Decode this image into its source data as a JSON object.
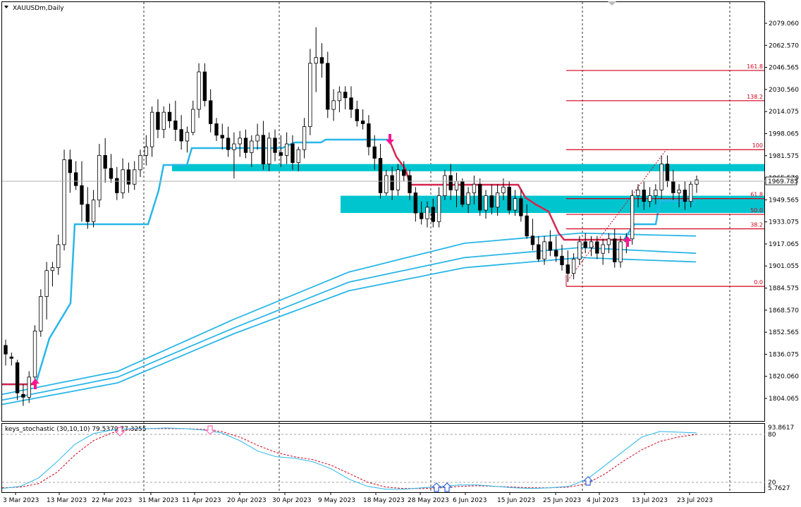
{
  "symbol_title": "XAUUSDm,Daily",
  "current_price": "1969.785",
  "price_ticks": [
    "2079.060",
    "2062.570",
    "2046.565",
    "2030.560",
    "2014.075",
    "1998.065",
    "1981.575",
    "1965.570",
    "1949.565",
    "1933.075",
    "1917.065",
    "1901.055",
    "1884.575",
    "1868.570",
    "1852.565",
    "1836.075",
    "1820.060",
    "1804.065"
  ],
  "date_ticks": [
    "3 Mar 2023",
    "13 Mar 2023",
    "22 Mar 2023",
    "31 Mar 2023",
    "11 Apr 2023",
    "20 Apr 2023",
    "30 Apr 2023",
    "9 May 2023",
    "18 May 2023",
    "28 May 2023",
    "6 Jun 2023",
    "15 Jun 2023",
    "25 Jun 2023",
    "4 Jul 2023",
    "13 Jul 2023",
    "23 Jul 2023"
  ],
  "fib_levels": [
    "161.8",
    "138.2",
    "100",
    "61.8",
    "50.0",
    "38.2",
    "0.0"
  ],
  "stochastic": {
    "label": "keys_stochastic (30,10,10) 79.5379 77.3255",
    "max_label": "93.8617",
    "level_80": "80",
    "level_20": "20",
    "min_label": "5.7627"
  },
  "colors": {
    "candle_up": "#ffffff",
    "candle_down": "#000000",
    "ma_band": "#29b6e8",
    "trail_line_bull": "#29b6e8",
    "trail_line_bear": "#d6254d",
    "zone": "#00c5cf",
    "fib": "#d0021b",
    "arrow": "#ff1493",
    "stoch_main": "#29b6e8",
    "stoch_signal": "#d0021b"
  },
  "chart_data": {
    "type": "candlestick",
    "title": "XAUUSDm,Daily",
    "y_range": [
      1802.0,
      2092.0
    ],
    "x_range": [
      "3 Mar 2023",
      "26 Jul 2023"
    ],
    "candles_ohlc": [
      [
        1854,
        1858,
        1840,
        1848
      ],
      [
        1846,
        1849,
        1840,
        1845
      ],
      [
        1842,
        1844,
        1816,
        1821
      ],
      [
        1820,
        1827,
        1812,
        1818
      ],
      [
        1818,
        1836,
        1814,
        1832
      ],
      [
        1832,
        1868,
        1828,
        1864
      ],
      [
        1864,
        1893,
        1860,
        1888
      ],
      [
        1888,
        1912,
        1872,
        1906
      ],
      [
        1906,
        1912,
        1895,
        1908
      ],
      [
        1908,
        1931,
        1903,
        1924
      ],
      [
        1924,
        1990,
        1920,
        1983
      ],
      [
        1983,
        1990,
        1960,
        1974
      ],
      [
        1974,
        1982,
        1962,
        1965
      ],
      [
        1965,
        1982,
        1940,
        1952
      ],
      [
        1952,
        1964,
        1935,
        1940
      ],
      [
        1940,
        1962,
        1936,
        1955
      ],
      [
        1955,
        1994,
        1950,
        1986
      ],
      [
        1986,
        1998,
        1967,
        1977
      ],
      [
        1977,
        1987,
        1967,
        1970
      ],
      [
        1970,
        1978,
        1955,
        1960
      ],
      [
        1960,
        1984,
        1956,
        1976
      ],
      [
        1976,
        1981,
        1960,
        1966
      ],
      [
        1966,
        1982,
        1962,
        1976
      ],
      [
        1976,
        1990,
        1971,
        1986
      ],
      [
        1986,
        2000,
        1979,
        1992
      ],
      [
        1992,
        2020,
        1985,
        2016
      ],
      [
        2016,
        2025,
        1998,
        2004
      ],
      [
        2004,
        2020,
        1998,
        2016
      ],
      [
        2016,
        2022,
        2005,
        2010
      ],
      [
        2010,
        2024,
        1996,
        2004
      ],
      [
        2004,
        2014,
        1990,
        1996
      ],
      [
        1996,
        2006,
        1988,
        2002
      ],
      [
        2002,
        2024,
        2000,
        2018
      ],
      [
        2018,
        2050,
        2012,
        2044
      ],
      [
        2044,
        2050,
        2020,
        2024
      ],
      [
        2024,
        2032,
        2002,
        2008
      ],
      [
        2008,
        2012,
        1996,
        2000
      ],
      [
        2000,
        2008,
        1990,
        1998
      ],
      [
        1998,
        2006,
        1985,
        1990
      ],
      [
        1990,
        2002,
        1970,
        1994
      ],
      [
        1994,
        2003,
        1985,
        1998
      ],
      [
        1998,
        2004,
        1984,
        1988
      ],
      [
        1988,
        2000,
        1978,
        1996
      ],
      [
        1996,
        2008,
        1990,
        2000
      ],
      [
        2000,
        2010,
        1976,
        1980
      ],
      [
        1980,
        2002,
        1975,
        1998
      ],
      [
        1998,
        2004,
        1982,
        1988
      ],
      [
        1988,
        2000,
        1978,
        1986
      ],
      [
        1986,
        2002,
        1980,
        1994
      ],
      [
        1994,
        2000,
        1976,
        1981
      ],
      [
        1981,
        1992,
        1975,
        1990
      ],
      [
        1990,
        2012,
        1984,
        2006
      ],
      [
        2006,
        2060,
        2000,
        2050
      ],
      [
        2050,
        2075,
        2030,
        2054
      ],
      [
        2054,
        2064,
        2040,
        2050
      ],
      [
        2050,
        2058,
        2012,
        2018
      ],
      [
        2018,
        2032,
        2010,
        2024
      ],
      [
        2024,
        2034,
        2016,
        2030
      ],
      [
        2030,
        2034,
        2018,
        2026
      ],
      [
        2026,
        2034,
        2012,
        2018
      ],
      [
        2018,
        2024,
        2006,
        2010
      ],
      [
        2010,
        2018,
        2004,
        2008
      ],
      [
        2008,
        2014,
        1986,
        1992
      ],
      [
        1992,
        2000,
        1976,
        1984
      ],
      [
        1984,
        1994,
        1956,
        1960
      ],
      [
        1960,
        1976,
        1958,
        1972
      ],
      [
        1972,
        1978,
        1955,
        1962
      ],
      [
        1962,
        1980,
        1958,
        1976
      ],
      [
        1976,
        1982,
        1968,
        1972
      ],
      [
        1972,
        1976,
        1955,
        1960
      ],
      [
        1960,
        1964,
        1940,
        1946
      ],
      [
        1946,
        1954,
        1938,
        1942
      ],
      [
        1942,
        1954,
        1936,
        1950
      ],
      [
        1950,
        1956,
        1936,
        1940
      ],
      [
        1940,
        1964,
        1936,
        1958
      ],
      [
        1958,
        1976,
        1955,
        1972
      ],
      [
        1972,
        1980,
        1955,
        1962
      ],
      [
        1962,
        1974,
        1950,
        1968
      ],
      [
        1968,
        1970,
        1950,
        1952
      ],
      [
        1952,
        1964,
        1946,
        1960
      ],
      [
        1960,
        1972,
        1952,
        1966
      ],
      [
        1966,
        1970,
        1944,
        1948
      ],
      [
        1948,
        1962,
        1942,
        1958
      ],
      [
        1958,
        1966,
        1945,
        1950
      ],
      [
        1950,
        1966,
        1944,
        1960
      ],
      [
        1960,
        1970,
        1955,
        1964
      ],
      [
        1964,
        1968,
        1945,
        1948
      ],
      [
        1948,
        1962,
        1944,
        1956
      ],
      [
        1956,
        1962,
        1940,
        1944
      ],
      [
        1944,
        1952,
        1928,
        1930
      ],
      [
        1930,
        1942,
        1920,
        1924
      ],
      [
        1924,
        1930,
        1912,
        1914
      ],
      [
        1914,
        1930,
        1910,
        1926
      ],
      [
        1926,
        1934,
        1916,
        1920
      ],
      [
        1920,
        1930,
        1912,
        1916
      ],
      [
        1916,
        1924,
        1906,
        1910
      ],
      [
        1910,
        1920,
        1898,
        1904
      ],
      [
        1904,
        1918,
        1900,
        1914
      ],
      [
        1914,
        1930,
        1910,
        1926
      ],
      [
        1926,
        1932,
        1918,
        1922
      ],
      [
        1922,
        1930,
        1916,
        1926
      ],
      [
        1926,
        1930,
        1914,
        1918
      ],
      [
        1918,
        1928,
        1910,
        1924
      ],
      [
        1924,
        1932,
        1918,
        1928
      ],
      [
        1928,
        1935,
        1908,
        1912
      ],
      [
        1912,
        1930,
        1908,
        1926
      ],
      [
        1926,
        1932,
        1918,
        1928
      ],
      [
        1928,
        1962,
        1924,
        1958
      ],
      [
        1958,
        1966,
        1950,
        1962
      ],
      [
        1962,
        1968,
        1948,
        1954
      ],
      [
        1954,
        1964,
        1950,
        1958
      ],
      [
        1958,
        1966,
        1952,
        1962
      ],
      [
        1962,
        1986,
        1956,
        1980
      ],
      [
        1980,
        1986,
        1964,
        1968
      ],
      [
        1968,
        1976,
        1955,
        1960
      ],
      [
        1960,
        1966,
        1950,
        1962
      ],
      [
        1962,
        1968,
        1948,
        1954
      ],
      [
        1954,
        1968,
        1950,
        1966
      ],
      [
        1966,
        1972,
        1960,
        1969
      ]
    ],
    "ma_band": [
      {
        "name": "upper",
        "values": [
          1820,
          1836,
          1872,
          1905,
          1925,
          1932,
          1930
        ]
      },
      {
        "name": "middle",
        "values": [
          1816,
          1832,
          1866,
          1898,
          1915,
          1922,
          1918
        ]
      },
      {
        "name": "lower",
        "values": [
          1813,
          1828,
          1862,
          1892,
          1908,
          1915,
          1912
        ]
      }
    ],
    "fibonacci": [
      {
        "level": "161.8",
        "price": 2045
      },
      {
        "level": "138.2",
        "price": 2024
      },
      {
        "level": "100",
        "price": 1990
      },
      {
        "level": "61.8",
        "price": 1956
      },
      {
        "level": "50.0",
        "price": 1945
      },
      {
        "level": "38.2",
        "price": 1935
      },
      {
        "level": "0.0",
        "price": 1895
      }
    ],
    "zones": [
      {
        "top": 1980,
        "bottom": 1975
      },
      {
        "top": 1958,
        "bottom": 1946
      }
    ],
    "stochastic_range": [
      5.7627,
      93.8617
    ],
    "stochastic_main": [
      7,
      10,
      22,
      45,
      70,
      85,
      90,
      92,
      92,
      93,
      92,
      90,
      86,
      75,
      60,
      52,
      50,
      45,
      35,
      20,
      10,
      6,
      6,
      8,
      10,
      12,
      12,
      10,
      8,
      7,
      8,
      10,
      20,
      40,
      60,
      80,
      88,
      87,
      86
    ],
    "stochastic_signal": [
      8,
      9,
      14,
      30,
      55,
      75,
      86,
      91,
      92,
      92,
      92,
      91,
      88,
      80,
      68,
      58,
      52,
      48,
      40,
      28,
      16,
      9,
      7,
      7,
      8,
      10,
      11,
      10,
      9,
      8,
      8,
      9,
      14,
      28,
      46,
      62,
      74,
      80,
      84
    ]
  }
}
